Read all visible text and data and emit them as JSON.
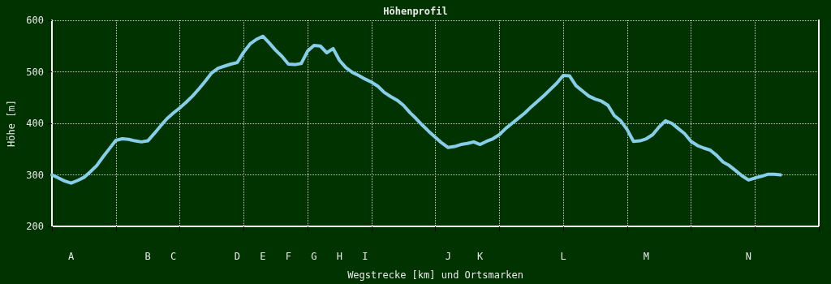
{
  "chart_data": {
    "type": "line",
    "title": "Höhenprofil",
    "xlabel": "Wegstrecke [km] und Ortsmarken",
    "ylabel": "Höhe [m]",
    "categories": [
      null,
      null,
      null,
      "A",
      null,
      null,
      null,
      null,
      null,
      null,
      null,
      null,
      null,
      null,
      null,
      "B",
      null,
      null,
      null,
      "C",
      null,
      null,
      null,
      null,
      null,
      null,
      null,
      null,
      null,
      "D",
      null,
      null,
      null,
      "E",
      null,
      null,
      null,
      "F",
      null,
      null,
      null,
      "G",
      null,
      null,
      null,
      "H",
      null,
      null,
      null,
      "I",
      null,
      null,
      null,
      null,
      null,
      null,
      null,
      null,
      null,
      null,
      null,
      null,
      "J",
      null,
      null,
      null,
      null,
      "K",
      null,
      null,
      null,
      null,
      null,
      null,
      null,
      null,
      null,
      null,
      null,
      null,
      "L",
      null,
      null,
      null,
      null,
      null,
      null,
      null,
      null,
      null,
      null,
      null,
      null,
      "M",
      null,
      null,
      null,
      null,
      null,
      null,
      null,
      null,
      null,
      null,
      null,
      null,
      null,
      null,
      null,
      "N",
      null,
      null,
      null,
      null,
      null,
      null,
      null,
      null,
      null,
      null,
      null
    ],
    "series": [
      {
        "color": "#87ceeb",
        "values": [
          300,
          294,
          288,
          284,
          289,
          295,
          306,
          318,
          335,
          351,
          367,
          370,
          369,
          366,
          364,
          366,
          380,
          395,
          409,
          420,
          430,
          441,
          453,
          467,
          482,
          498,
          507,
          511,
          515,
          518,
          538,
          554,
          563,
          569,
          556,
          542,
          530,
          515,
          514,
          516,
          540,
          551,
          550,
          537,
          545,
          522,
          508,
          499,
          493,
          486,
          480,
          472,
          460,
          452,
          445,
          435,
          421,
          409,
          396,
          384,
          373,
          362,
          353,
          355,
          359,
          361,
          364,
          359,
          365,
          370,
          378,
          390,
          400,
          410,
          420,
          432,
          443,
          454,
          466,
          478,
          493,
          492,
          473,
          463,
          453,
          447,
          443,
          435,
          415,
          405,
          388,
          365,
          366,
          370,
          378,
          393,
          405,
          400,
          390,
          380,
          365,
          357,
          352,
          348,
          338,
          325,
          318,
          308,
          298,
          290,
          294,
          297,
          301,
          301,
          300,
          null,
          null,
          null,
          null,
          null,
          null
        ]
      }
    ],
    "ylim": [
      200,
      600
    ],
    "yticks": [
      200,
      300,
      400,
      500,
      600
    ],
    "grid": true,
    "marker": "none",
    "line_style": "solid"
  }
}
